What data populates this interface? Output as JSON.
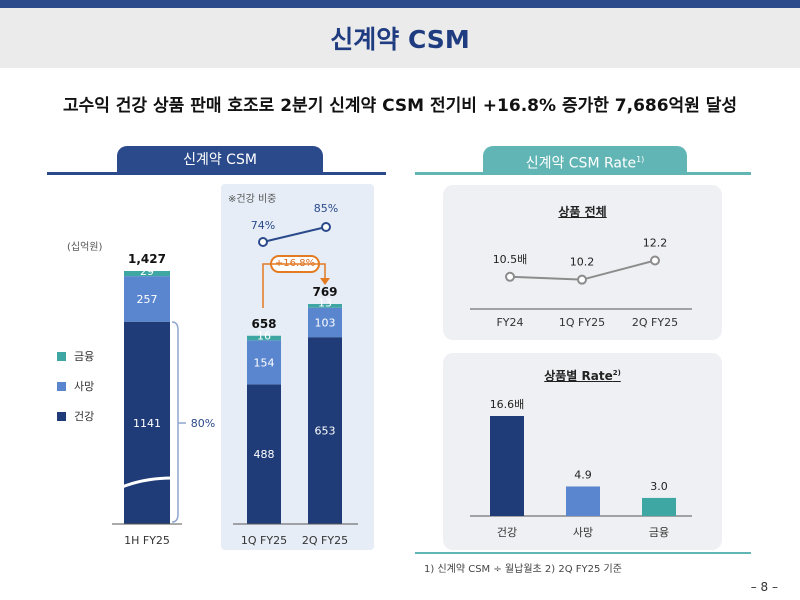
{
  "title": "신계약 CSM",
  "headline": "고수익 건강 상품 판매 호조로 2분기 신계약 CSM 전기비 +16.8% 증가한 7,686억원 달성",
  "colors": {
    "navy": "#1f3c78",
    "mid_blue": "#5a86cf",
    "teal": "#3fa7a3",
    "section_left": "#2b4a8b",
    "section_right": "#62b5b5",
    "orange": "#e47a22"
  },
  "left_section": {
    "header": "신계약 CSM"
  },
  "right_section": {
    "header": "신계약 CSM Rate",
    "header_sup": "1)"
  },
  "footnote": "1) 신계약 CSM ÷ 월납월초   2) 2Q FY25 기준",
  "page_number": "– 8 –",
  "chart_data": [
    {
      "type": "bar",
      "stacked": true,
      "title": "신계약 CSM",
      "unit": "(십억원)",
      "categories": [
        "1H FY25",
        "1Q FY25",
        "2Q FY25"
      ],
      "series": [
        {
          "name": "건강",
          "color": "#1f3c78",
          "values": [
            1141,
            488,
            653
          ]
        },
        {
          "name": "사망",
          "color": "#5a86cf",
          "values": [
            257,
            154,
            103
          ]
        },
        {
          "name": "금융",
          "color": "#3fa7a3",
          "values": [
            29,
            16,
            13
          ]
        }
      ],
      "totals": [
        "1,427",
        "658",
        "769"
      ],
      "health_share_1h": "80%",
      "quarter_panel": {
        "note": "※건강 비중",
        "health_share": [
          "74%",
          "85%"
        ],
        "qoq_growth": "+16.8%"
      }
    },
    {
      "type": "line",
      "title": "상품 전체",
      "x": [
        "FY24",
        "1Q FY25",
        "2Q FY25"
      ],
      "values": [
        10.5,
        10.2,
        12.2
      ],
      "value_labels": [
        "10.5배",
        "10.2",
        "12.2"
      ]
    },
    {
      "type": "bar",
      "title": "상품별 Rate",
      "title_sup": "2)",
      "categories": [
        "건강",
        "사망",
        "금융"
      ],
      "values": [
        16.6,
        4.9,
        3.0
      ],
      "value_labels": [
        "16.6배",
        "4.9",
        "3.0"
      ],
      "colors": [
        "#1f3c78",
        "#5a86cf",
        "#3fa7a3"
      ]
    }
  ]
}
